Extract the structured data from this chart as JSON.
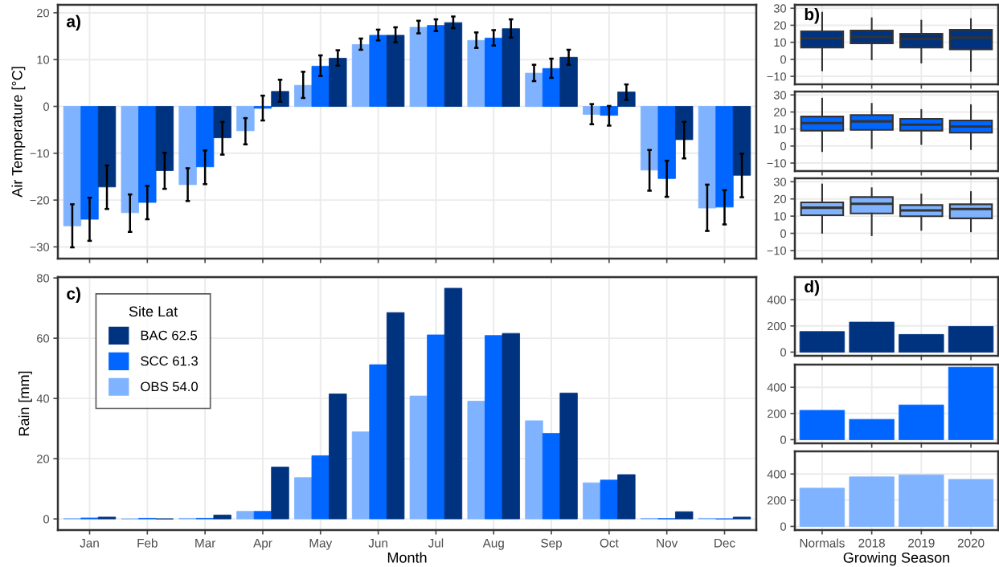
{
  "chart_data": [
    {
      "type": "bar",
      "annotations": [
        "a)"
      ],
      "ylabel": "Air Temperature [°C]",
      "categories": [
        null,
        null,
        null,
        null,
        null,
        null,
        null,
        null,
        null,
        null,
        null,
        null
      ],
      "tick_labels": "y",
      "grid": true,
      "legend": false,
      "ylim": [
        -32.5,
        21.7
      ],
      "yticks": [
        {
          "value": -30,
          "label": "−30"
        },
        {
          "value": -20,
          "label": "−20"
        },
        {
          "value": -10,
          "label": "−10"
        },
        0,
        10,
        20
      ],
      "series": [
        {
          "color": "#80b3ff",
          "values": [
            -25.5,
            -22.7,
            -16.7,
            -5.2,
            4.5,
            13.2,
            16.9,
            14.1,
            7.1,
            -1.7,
            -13.6,
            -21.7
          ],
          "errors": [
            [
              -30.1,
              -20.9
            ],
            [
              -26.8,
              -18.8
            ],
            [
              -20.2,
              -13.2
            ],
            [
              -8.1,
              -2.5
            ],
            [
              1.8,
              7.4
            ],
            [
              12.1,
              14.5
            ],
            [
              15.6,
              18.3
            ],
            [
              12.5,
              15.8
            ],
            [
              5.4,
              8.9
            ],
            [
              -3.8,
              0.5
            ],
            [
              -18.0,
              -9.3
            ],
            [
              -26.6,
              -16.7
            ]
          ]
        },
        {
          "color": "#0066ff",
          "values": [
            -24.1,
            -20.5,
            -12.9,
            -0.4,
            8.6,
            15.2,
            17.3,
            14.6,
            8.1,
            -1.9,
            -15.4,
            -21.5
          ],
          "errors": [
            [
              -28.7,
              -19.5
            ],
            [
              -24.1,
              -17.0
            ],
            [
              -16.6,
              -9.4
            ],
            [
              -3.0,
              2.3
            ],
            [
              6.5,
              10.9
            ],
            [
              14.1,
              16.4
            ],
            [
              16.1,
              18.6
            ],
            [
              13.0,
              16.3
            ],
            [
              6.1,
              10.2
            ],
            [
              -4.1,
              0.1
            ],
            [
              -19.3,
              -11.6
            ],
            [
              -25.2,
              -17.9
            ]
          ]
        },
        {
          "color": "#00337f",
          "values": [
            -17.2,
            -13.7,
            -6.7,
            3.2,
            10.3,
            15.2,
            17.9,
            16.6,
            10.5,
            3.1,
            -7.1,
            -14.7
          ],
          "errors": [
            [
              -21.9,
              -12.6
            ],
            [
              -17.6,
              -9.9
            ],
            [
              -10.3,
              -3.3
            ],
            [
              1.0,
              5.7
            ],
            [
              8.7,
              12.0
            ],
            [
              13.7,
              16.9
            ],
            [
              16.7,
              19.2
            ],
            [
              14.7,
              18.6
            ],
            [
              8.9,
              12.1
            ],
            [
              1.4,
              4.7
            ],
            [
              -11.1,
              -3.3
            ],
            [
              -19.4,
              -10.1
            ]
          ]
        }
      ]
    },
    {
      "type": "box",
      "annotations": [
        "b)"
      ],
      "categories": [
        null,
        null,
        null,
        null
      ],
      "tick_labels": "y",
      "grid": true,
      "ylim": [
        -14.7,
        32
      ],
      "yticks": [
        {
          "value": -10,
          "label": "−10"
        },
        0,
        10,
        20,
        30
      ],
      "series": [
        {
          "color": "#00337f",
          "boxes": [
            {
              "low": -6.5,
              "q1": 6.9,
              "median": 12.4,
              "q3": 16.4,
              "high": 27.4
            },
            {
              "low": 0,
              "q1": 9.4,
              "median": 13.1,
              "q3": 16.9,
              "high": 24.1
            },
            {
              "low": -1.9,
              "q1": 6.9,
              "median": 12.0,
              "q3": 15.0,
              "high": 22.7
            },
            {
              "low": -6.8,
              "q1": 5.8,
              "median": 12.8,
              "q3": 17.3,
              "high": 23.6
            }
          ]
        }
      ]
    },
    {
      "type": "box",
      "categories": [
        null,
        null,
        null,
        null
      ],
      "tick_labels": "y",
      "grid": true,
      "ylim": [
        -14.7,
        32
      ],
      "yticks": [
        {
          "value": -10,
          "label": "−10"
        },
        0,
        10,
        20,
        30
      ],
      "series": [
        {
          "color": "#0066ff",
          "boxes": [
            {
              "low": -3.0,
              "q1": 9.0,
              "median": 13.5,
              "q3": 17.3,
              "high": 27.8
            },
            {
              "low": -1.2,
              "q1": 9.5,
              "median": 14.5,
              "q3": 18.2,
              "high": 24.8
            },
            {
              "low": 1.2,
              "q1": 9.0,
              "median": 12.5,
              "q3": 16.0,
              "high": 21.2
            },
            {
              "low": -1.8,
              "q1": 7.8,
              "median": 11.5,
              "q3": 15.0,
              "high": 24.0
            }
          ]
        }
      ]
    },
    {
      "type": "box",
      "categories": [
        null,
        null,
        null,
        null
      ],
      "tick_labels": "y",
      "grid": true,
      "ylim": [
        -14.7,
        32
      ],
      "yticks": [
        {
          "value": -10,
          "label": "−10"
        },
        0,
        10,
        20,
        30
      ],
      "series": [
        {
          "color": "#80b3ff",
          "boxes": [
            {
              "low": 0.3,
              "q1": 10.5,
              "median": 14.9,
              "q3": 18.0,
              "high": 28.4
            },
            {
              "low": -1.1,
              "q1": 11.6,
              "median": 17.2,
              "q3": 21.1,
              "high": 26.2
            },
            {
              "low": 2.0,
              "q1": 9.9,
              "median": 13.3,
              "q3": 16.4,
              "high": 22.6
            },
            {
              "low": 1.1,
              "q1": 8.7,
              "median": 14.1,
              "q3": 16.9,
              "high": 24.0
            }
          ]
        }
      ]
    },
    {
      "type": "bar",
      "annotations": [
        "c)"
      ],
      "xlabel": "Month",
      "ylabel": "Rain [mm]",
      "legend_title": "Site Lat",
      "legend": "top left",
      "grid": true,
      "categories": [
        "Jan",
        "Feb",
        "Mar",
        "Apr",
        "May",
        "Jun",
        "Jul",
        "Aug",
        "Sep",
        "Oct",
        "Nov",
        "Dec"
      ],
      "ylim": [
        -3.7,
        80.3
      ],
      "yticks": [
        0,
        20,
        40,
        60,
        80
      ],
      "series": [
        {
          "name": "OBS 54.0",
          "color": "#80b3ff",
          "values": [
            0.1,
            0,
            0.2,
            2.5,
            13.7,
            28.9,
            40.8,
            39.1,
            32.6,
            12.0,
            0.2,
            0.2
          ]
        },
        {
          "name": "SCC 61.3",
          "color": "#0066ff",
          "values": [
            0.3,
            0.2,
            0.2,
            2.5,
            21.0,
            51.2,
            61.1,
            60.9,
            28.4,
            12.9,
            0.1,
            0
          ]
        },
        {
          "name": "BAC 62.5",
          "color": "#00337f",
          "values": [
            0.6,
            0,
            1.3,
            17.2,
            41.5,
            68.5,
            76.6,
            61.6,
            41.8,
            14.7,
            2.4,
            0.6
          ]
        }
      ]
    },
    {
      "type": "bar",
      "annotations": [
        "d)"
      ],
      "categories": [
        null,
        null,
        null,
        null
      ],
      "tick_labels": "y",
      "grid": true,
      "ylim": [
        -28,
        573
      ],
      "yticks": [
        0,
        200,
        400
      ],
      "series": [
        {
          "color": "#00337f",
          "values": [
            157,
            229,
            135,
            196
          ]
        }
      ]
    },
    {
      "type": "bar",
      "categories": [
        null,
        null,
        null,
        null
      ],
      "tick_labels": "y",
      "grid": true,
      "ylim": [
        -28,
        573
      ],
      "yticks": [
        0,
        200,
        400
      ],
      "series": [
        {
          "color": "#0066ff",
          "values": [
            224,
            155,
            265,
            553
          ]
        }
      ]
    },
    {
      "type": "bar",
      "xlabel": "Growing Season",
      "categories": [
        "Normals",
        "2018",
        "2019",
        "2020"
      ],
      "grid": true,
      "ylim": [
        -28,
        573
      ],
      "yticks": [
        0,
        200,
        400
      ],
      "series": [
        {
          "color": "#80b3ff",
          "values": [
            292,
            378,
            394,
            359
          ]
        }
      ]
    }
  ]
}
